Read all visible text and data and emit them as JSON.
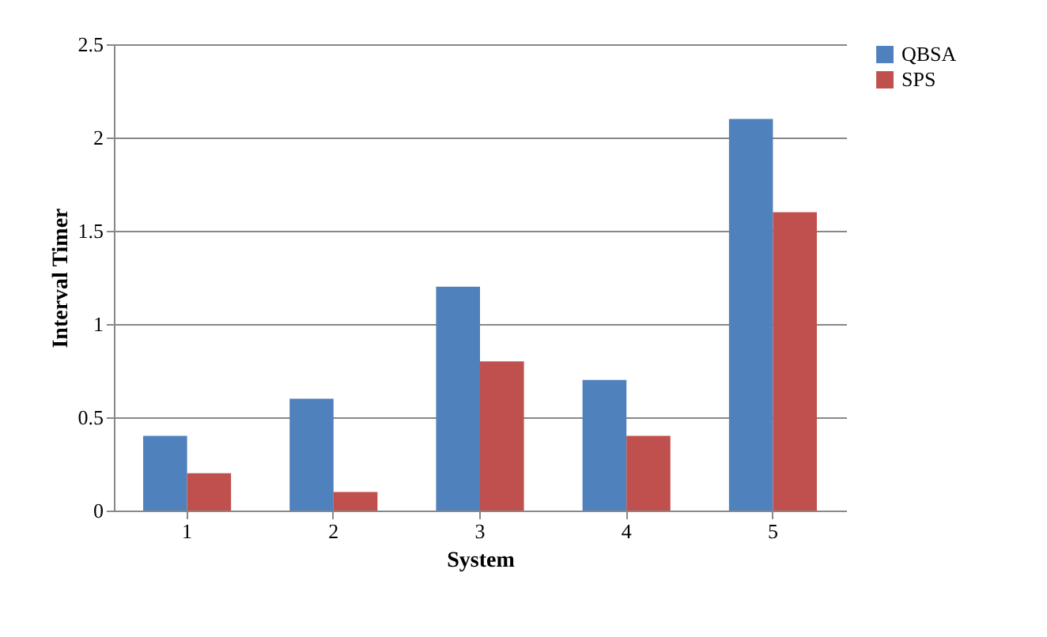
{
  "chart_data": {
    "type": "bar",
    "xlabel": "System",
    "ylabel": "Interval Timer",
    "categories": [
      "1",
      "2",
      "3",
      "4",
      "5"
    ],
    "series": [
      {
        "name": "QBSA",
        "color": "#4f81bd",
        "values": [
          0.4,
          0.6,
          1.2,
          0.7,
          2.1
        ]
      },
      {
        "name": "SPS",
        "color": "#c0504d",
        "values": [
          0.2,
          0.1,
          0.8,
          0.4,
          1.6
        ]
      }
    ],
    "ylim": [
      0,
      2.5
    ],
    "yticks": [
      0,
      0.5,
      1,
      1.5,
      2,
      2.5
    ],
    "grid": "y",
    "legend": "right"
  }
}
